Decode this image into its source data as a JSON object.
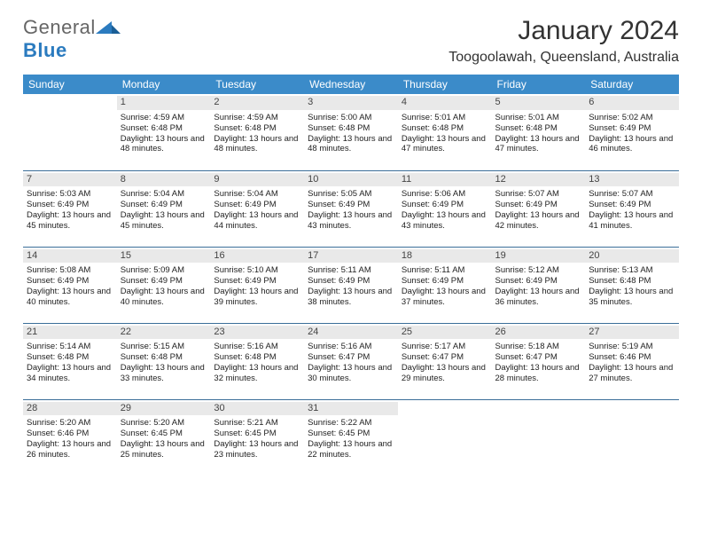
{
  "brand": {
    "name_part1": "General",
    "name_part2": "Blue"
  },
  "title": "January 2024",
  "location": "Toogoolawah, Queensland, Australia",
  "colors": {
    "header_bg": "#3b8bc9",
    "header_text": "#ffffff",
    "daynum_bg": "#e9e9e9",
    "row_divider": "#3b6e99",
    "logo_blue": "#2b7bbf",
    "logo_gray": "#666666"
  },
  "day_headers": [
    "Sunday",
    "Monday",
    "Tuesday",
    "Wednesday",
    "Thursday",
    "Friday",
    "Saturday"
  ],
  "weeks": [
    [
      {
        "n": "",
        "sunrise": "",
        "sunset": "",
        "daylight": ""
      },
      {
        "n": "1",
        "sunrise": "Sunrise: 4:59 AM",
        "sunset": "Sunset: 6:48 PM",
        "daylight": "Daylight: 13 hours and 48 minutes."
      },
      {
        "n": "2",
        "sunrise": "Sunrise: 4:59 AM",
        "sunset": "Sunset: 6:48 PM",
        "daylight": "Daylight: 13 hours and 48 minutes."
      },
      {
        "n": "3",
        "sunrise": "Sunrise: 5:00 AM",
        "sunset": "Sunset: 6:48 PM",
        "daylight": "Daylight: 13 hours and 48 minutes."
      },
      {
        "n": "4",
        "sunrise": "Sunrise: 5:01 AM",
        "sunset": "Sunset: 6:48 PM",
        "daylight": "Daylight: 13 hours and 47 minutes."
      },
      {
        "n": "5",
        "sunrise": "Sunrise: 5:01 AM",
        "sunset": "Sunset: 6:48 PM",
        "daylight": "Daylight: 13 hours and 47 minutes."
      },
      {
        "n": "6",
        "sunrise": "Sunrise: 5:02 AM",
        "sunset": "Sunset: 6:49 PM",
        "daylight": "Daylight: 13 hours and 46 minutes."
      }
    ],
    [
      {
        "n": "7",
        "sunrise": "Sunrise: 5:03 AM",
        "sunset": "Sunset: 6:49 PM",
        "daylight": "Daylight: 13 hours and 45 minutes."
      },
      {
        "n": "8",
        "sunrise": "Sunrise: 5:04 AM",
        "sunset": "Sunset: 6:49 PM",
        "daylight": "Daylight: 13 hours and 45 minutes."
      },
      {
        "n": "9",
        "sunrise": "Sunrise: 5:04 AM",
        "sunset": "Sunset: 6:49 PM",
        "daylight": "Daylight: 13 hours and 44 minutes."
      },
      {
        "n": "10",
        "sunrise": "Sunrise: 5:05 AM",
        "sunset": "Sunset: 6:49 PM",
        "daylight": "Daylight: 13 hours and 43 minutes."
      },
      {
        "n": "11",
        "sunrise": "Sunrise: 5:06 AM",
        "sunset": "Sunset: 6:49 PM",
        "daylight": "Daylight: 13 hours and 43 minutes."
      },
      {
        "n": "12",
        "sunrise": "Sunrise: 5:07 AM",
        "sunset": "Sunset: 6:49 PM",
        "daylight": "Daylight: 13 hours and 42 minutes."
      },
      {
        "n": "13",
        "sunrise": "Sunrise: 5:07 AM",
        "sunset": "Sunset: 6:49 PM",
        "daylight": "Daylight: 13 hours and 41 minutes."
      }
    ],
    [
      {
        "n": "14",
        "sunrise": "Sunrise: 5:08 AM",
        "sunset": "Sunset: 6:49 PM",
        "daylight": "Daylight: 13 hours and 40 minutes."
      },
      {
        "n": "15",
        "sunrise": "Sunrise: 5:09 AM",
        "sunset": "Sunset: 6:49 PM",
        "daylight": "Daylight: 13 hours and 40 minutes."
      },
      {
        "n": "16",
        "sunrise": "Sunrise: 5:10 AM",
        "sunset": "Sunset: 6:49 PM",
        "daylight": "Daylight: 13 hours and 39 minutes."
      },
      {
        "n": "17",
        "sunrise": "Sunrise: 5:11 AM",
        "sunset": "Sunset: 6:49 PM",
        "daylight": "Daylight: 13 hours and 38 minutes."
      },
      {
        "n": "18",
        "sunrise": "Sunrise: 5:11 AM",
        "sunset": "Sunset: 6:49 PM",
        "daylight": "Daylight: 13 hours and 37 minutes."
      },
      {
        "n": "19",
        "sunrise": "Sunrise: 5:12 AM",
        "sunset": "Sunset: 6:49 PM",
        "daylight": "Daylight: 13 hours and 36 minutes."
      },
      {
        "n": "20",
        "sunrise": "Sunrise: 5:13 AM",
        "sunset": "Sunset: 6:48 PM",
        "daylight": "Daylight: 13 hours and 35 minutes."
      }
    ],
    [
      {
        "n": "21",
        "sunrise": "Sunrise: 5:14 AM",
        "sunset": "Sunset: 6:48 PM",
        "daylight": "Daylight: 13 hours and 34 minutes."
      },
      {
        "n": "22",
        "sunrise": "Sunrise: 5:15 AM",
        "sunset": "Sunset: 6:48 PM",
        "daylight": "Daylight: 13 hours and 33 minutes."
      },
      {
        "n": "23",
        "sunrise": "Sunrise: 5:16 AM",
        "sunset": "Sunset: 6:48 PM",
        "daylight": "Daylight: 13 hours and 32 minutes."
      },
      {
        "n": "24",
        "sunrise": "Sunrise: 5:16 AM",
        "sunset": "Sunset: 6:47 PM",
        "daylight": "Daylight: 13 hours and 30 minutes."
      },
      {
        "n": "25",
        "sunrise": "Sunrise: 5:17 AM",
        "sunset": "Sunset: 6:47 PM",
        "daylight": "Daylight: 13 hours and 29 minutes."
      },
      {
        "n": "26",
        "sunrise": "Sunrise: 5:18 AM",
        "sunset": "Sunset: 6:47 PM",
        "daylight": "Daylight: 13 hours and 28 minutes."
      },
      {
        "n": "27",
        "sunrise": "Sunrise: 5:19 AM",
        "sunset": "Sunset: 6:46 PM",
        "daylight": "Daylight: 13 hours and 27 minutes."
      }
    ],
    [
      {
        "n": "28",
        "sunrise": "Sunrise: 5:20 AM",
        "sunset": "Sunset: 6:46 PM",
        "daylight": "Daylight: 13 hours and 26 minutes."
      },
      {
        "n": "29",
        "sunrise": "Sunrise: 5:20 AM",
        "sunset": "Sunset: 6:45 PM",
        "daylight": "Daylight: 13 hours and 25 minutes."
      },
      {
        "n": "30",
        "sunrise": "Sunrise: 5:21 AM",
        "sunset": "Sunset: 6:45 PM",
        "daylight": "Daylight: 13 hours and 23 minutes."
      },
      {
        "n": "31",
        "sunrise": "Sunrise: 5:22 AM",
        "sunset": "Sunset: 6:45 PM",
        "daylight": "Daylight: 13 hours and 22 minutes."
      },
      {
        "n": "",
        "sunrise": "",
        "sunset": "",
        "daylight": ""
      },
      {
        "n": "",
        "sunrise": "",
        "sunset": "",
        "daylight": ""
      },
      {
        "n": "",
        "sunrise": "",
        "sunset": "",
        "daylight": ""
      }
    ]
  ]
}
